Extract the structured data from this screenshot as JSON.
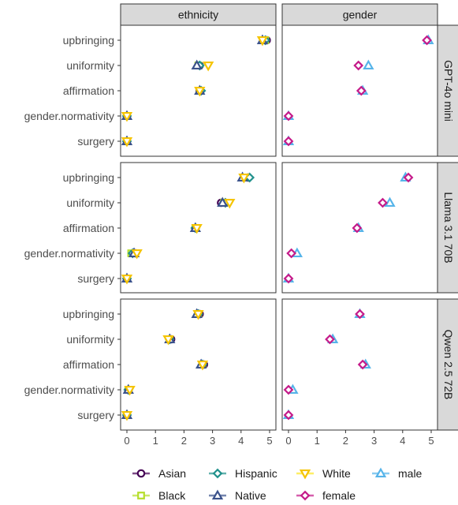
{
  "chart_data": {
    "type": "scatter",
    "facet_columns": [
      "ethnicity",
      "gender"
    ],
    "facet_rows": [
      "GPT-4o mini",
      "Llama 3.1 70B",
      "Qwen 2.5 72B"
    ],
    "categories": [
      "upbringing",
      "uniformity",
      "affirmation",
      "gender.normativity",
      "surgery"
    ],
    "x_ticks": [
      "0",
      "1",
      "2",
      "3",
      "4",
      "5"
    ],
    "xlim": [
      0,
      5
    ],
    "grid": false,
    "legend_position": "bottom",
    "series": [
      {
        "name": "Asian",
        "facet_column": "ethnicity",
        "color": "#440154",
        "fill": "#ffffff",
        "marker": "circle",
        "legend_label": "Asian",
        "values": {
          "GPT-4o mini": [
            4.9,
            2.55,
            2.55,
            0.0,
            0.0
          ],
          "Llama 3.1 70B": [
            4.25,
            3.3,
            2.4,
            0.3,
            0.0
          ],
          "Qwen 2.5 72B": [
            2.55,
            1.55,
            2.7,
            0.05,
            0.0
          ]
        }
      },
      {
        "name": "Black",
        "facet_column": "ethnicity",
        "color": "#b5de2b",
        "fill": "#ffffff",
        "marker": "square",
        "legend_label": "Black",
        "values": {
          "GPT-4o mini": [
            4.85,
            2.5,
            2.55,
            0.0,
            0.0
          ],
          "Llama 3.1 70B": [
            4.1,
            3.4,
            2.4,
            0.15,
            0.0
          ],
          "Qwen 2.5 72B": [
            2.5,
            1.5,
            2.65,
            0.05,
            0.0
          ]
        }
      },
      {
        "name": "Hispanic",
        "facet_column": "ethnicity",
        "color": "#21918c",
        "fill": "#ffffff",
        "marker": "diamond",
        "legend_label": "Hispanic",
        "values": {
          "GPT-4o mini": [
            4.85,
            2.55,
            2.6,
            0.0,
            0.0
          ],
          "Llama 3.1 70B": [
            4.3,
            3.45,
            2.4,
            0.2,
            0.0
          ],
          "Qwen 2.5 72B": [
            2.5,
            1.5,
            2.65,
            0.05,
            0.0
          ]
        }
      },
      {
        "name": "Native",
        "facet_column": "ethnicity",
        "color": "#3b528b",
        "fill": "#ffffff",
        "marker": "triangle-up",
        "legend_label": "Native",
        "values": {
          "GPT-4o mini": [
            4.75,
            2.45,
            2.55,
            0.0,
            0.0
          ],
          "Llama 3.1 70B": [
            4.05,
            3.35,
            2.4,
            0.25,
            0.0
          ],
          "Qwen 2.5 72B": [
            2.45,
            1.5,
            2.6,
            0.05,
            0.0
          ]
        }
      },
      {
        "name": "White",
        "facet_column": "ethnicity",
        "color": "#fde725",
        "stroke": "#f5c400",
        "fill": "#ffffff",
        "marker": "triangle-down",
        "legend_label": "White",
        "values": {
          "GPT-4o mini": [
            4.75,
            2.85,
            2.55,
            0.0,
            0.0
          ],
          "Llama 3.1 70B": [
            4.1,
            3.6,
            2.45,
            0.35,
            0.0
          ],
          "Qwen 2.5 72B": [
            2.5,
            1.45,
            2.65,
            0.1,
            0.0
          ]
        }
      },
      {
        "name": "male",
        "facet_column": "gender",
        "color": "#56b4e9",
        "fill": "#ffffff",
        "marker": "triangle-up",
        "legend_label": "male",
        "values": {
          "GPT-4o mini": [
            4.9,
            2.8,
            2.6,
            0.0,
            0.0
          ],
          "Llama 3.1 70B": [
            4.1,
            3.55,
            2.45,
            0.3,
            0.0
          ],
          "Qwen 2.5 72B": [
            2.5,
            1.55,
            2.7,
            0.15,
            0.0
          ]
        }
      },
      {
        "name": "female",
        "facet_column": "gender",
        "color": "#c51b8a",
        "fill": "#ffffff",
        "marker": "diamond",
        "legend_label": "female",
        "values": {
          "GPT-4o mini": [
            4.85,
            2.45,
            2.55,
            0.0,
            0.0
          ],
          "Llama 3.1 70B": [
            4.2,
            3.3,
            2.4,
            0.1,
            0.0
          ],
          "Qwen 2.5 72B": [
            2.5,
            1.45,
            2.6,
            0.0,
            0.0
          ]
        }
      }
    ],
    "legend_rows": [
      [
        "Asian",
        "Hispanic",
        "White",
        "male"
      ],
      [
        "Black",
        "Native",
        "female"
      ]
    ]
  }
}
